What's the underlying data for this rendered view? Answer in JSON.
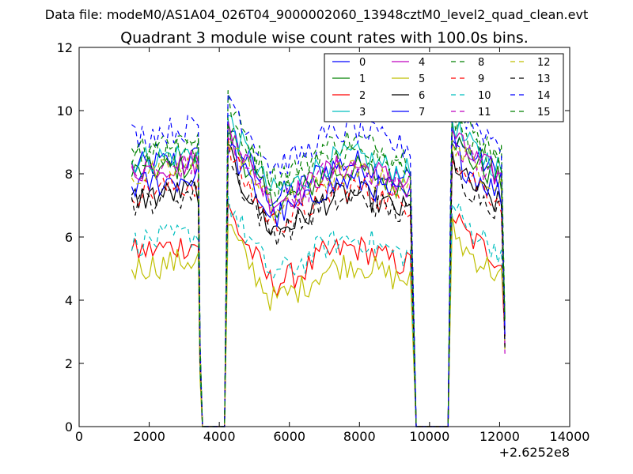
{
  "figure": {
    "suptitle": "Data file: modeM0/AS1A04_026T04_9000002060_13948cztM0_level2_quad_clean.evt"
  },
  "chart_data": {
    "type": "line",
    "title": "Quadrant 3 module wise count rates with 100.0s bins.",
    "xlabel": "",
    "ylabel": "",
    "x_offset_label": "+2.6252e8",
    "xlim": [
      0,
      14000
    ],
    "ylim": [
      0,
      12
    ],
    "xticks": [
      0,
      2000,
      4000,
      6000,
      8000,
      10000,
      12000,
      14000
    ],
    "yticks": [
      0,
      2,
      4,
      6,
      8,
      10,
      12
    ],
    "grid": false,
    "legend_position": "top-right",
    "legend_columns": 4,
    "segments": [
      {
        "start": 1500,
        "end": 3400
      },
      {
        "start": 4250,
        "end": 9500
      },
      {
        "start": 10650,
        "end": 12100
      }
    ],
    "gap_spans": [
      [
        3500,
        4150
      ],
      [
        9600,
        10550
      ]
    ],
    "series": [
      {
        "name": "0",
        "color": "#0000ff",
        "dash": "solid",
        "level": 8.2
      },
      {
        "name": "1",
        "color": "#008000",
        "dash": "solid",
        "level": 8.0
      },
      {
        "name": "2",
        "color": "#ff0000",
        "dash": "solid",
        "level": 5.5
      },
      {
        "name": "3",
        "color": "#00bfbf",
        "dash": "solid",
        "level": 8.4
      },
      {
        "name": "4",
        "color": "#bf00bf",
        "dash": "solid",
        "level": 8.1
      },
      {
        "name": "5",
        "color": "#bfbf00",
        "dash": "solid",
        "level": 5.0
      },
      {
        "name": "6",
        "color": "#000000",
        "dash": "solid",
        "level": 7.2
      },
      {
        "name": "7",
        "color": "#0000ff",
        "dash": "solid",
        "level": 7.6
      },
      {
        "name": "8",
        "color": "#008000",
        "dash": "dashed",
        "level": 8.9
      },
      {
        "name": "9",
        "color": "#ff0000",
        "dash": "dashed",
        "level": 7.4
      },
      {
        "name": "10",
        "color": "#00bfbf",
        "dash": "dashed",
        "level": 5.8
      },
      {
        "name": "11",
        "color": "#bf00bf",
        "dash": "dashed",
        "level": 8.0
      },
      {
        "name": "12",
        "color": "#bfbf00",
        "dash": "dashed",
        "level": 7.9
      },
      {
        "name": "13",
        "color": "#000000",
        "dash": "dashed",
        "level": 7.1
      },
      {
        "name": "14",
        "color": "#0000ff",
        "dash": "dashed",
        "level": 9.2
      },
      {
        "name": "15",
        "color": "#008000",
        "dash": "dashed",
        "level": 8.5
      }
    ]
  }
}
